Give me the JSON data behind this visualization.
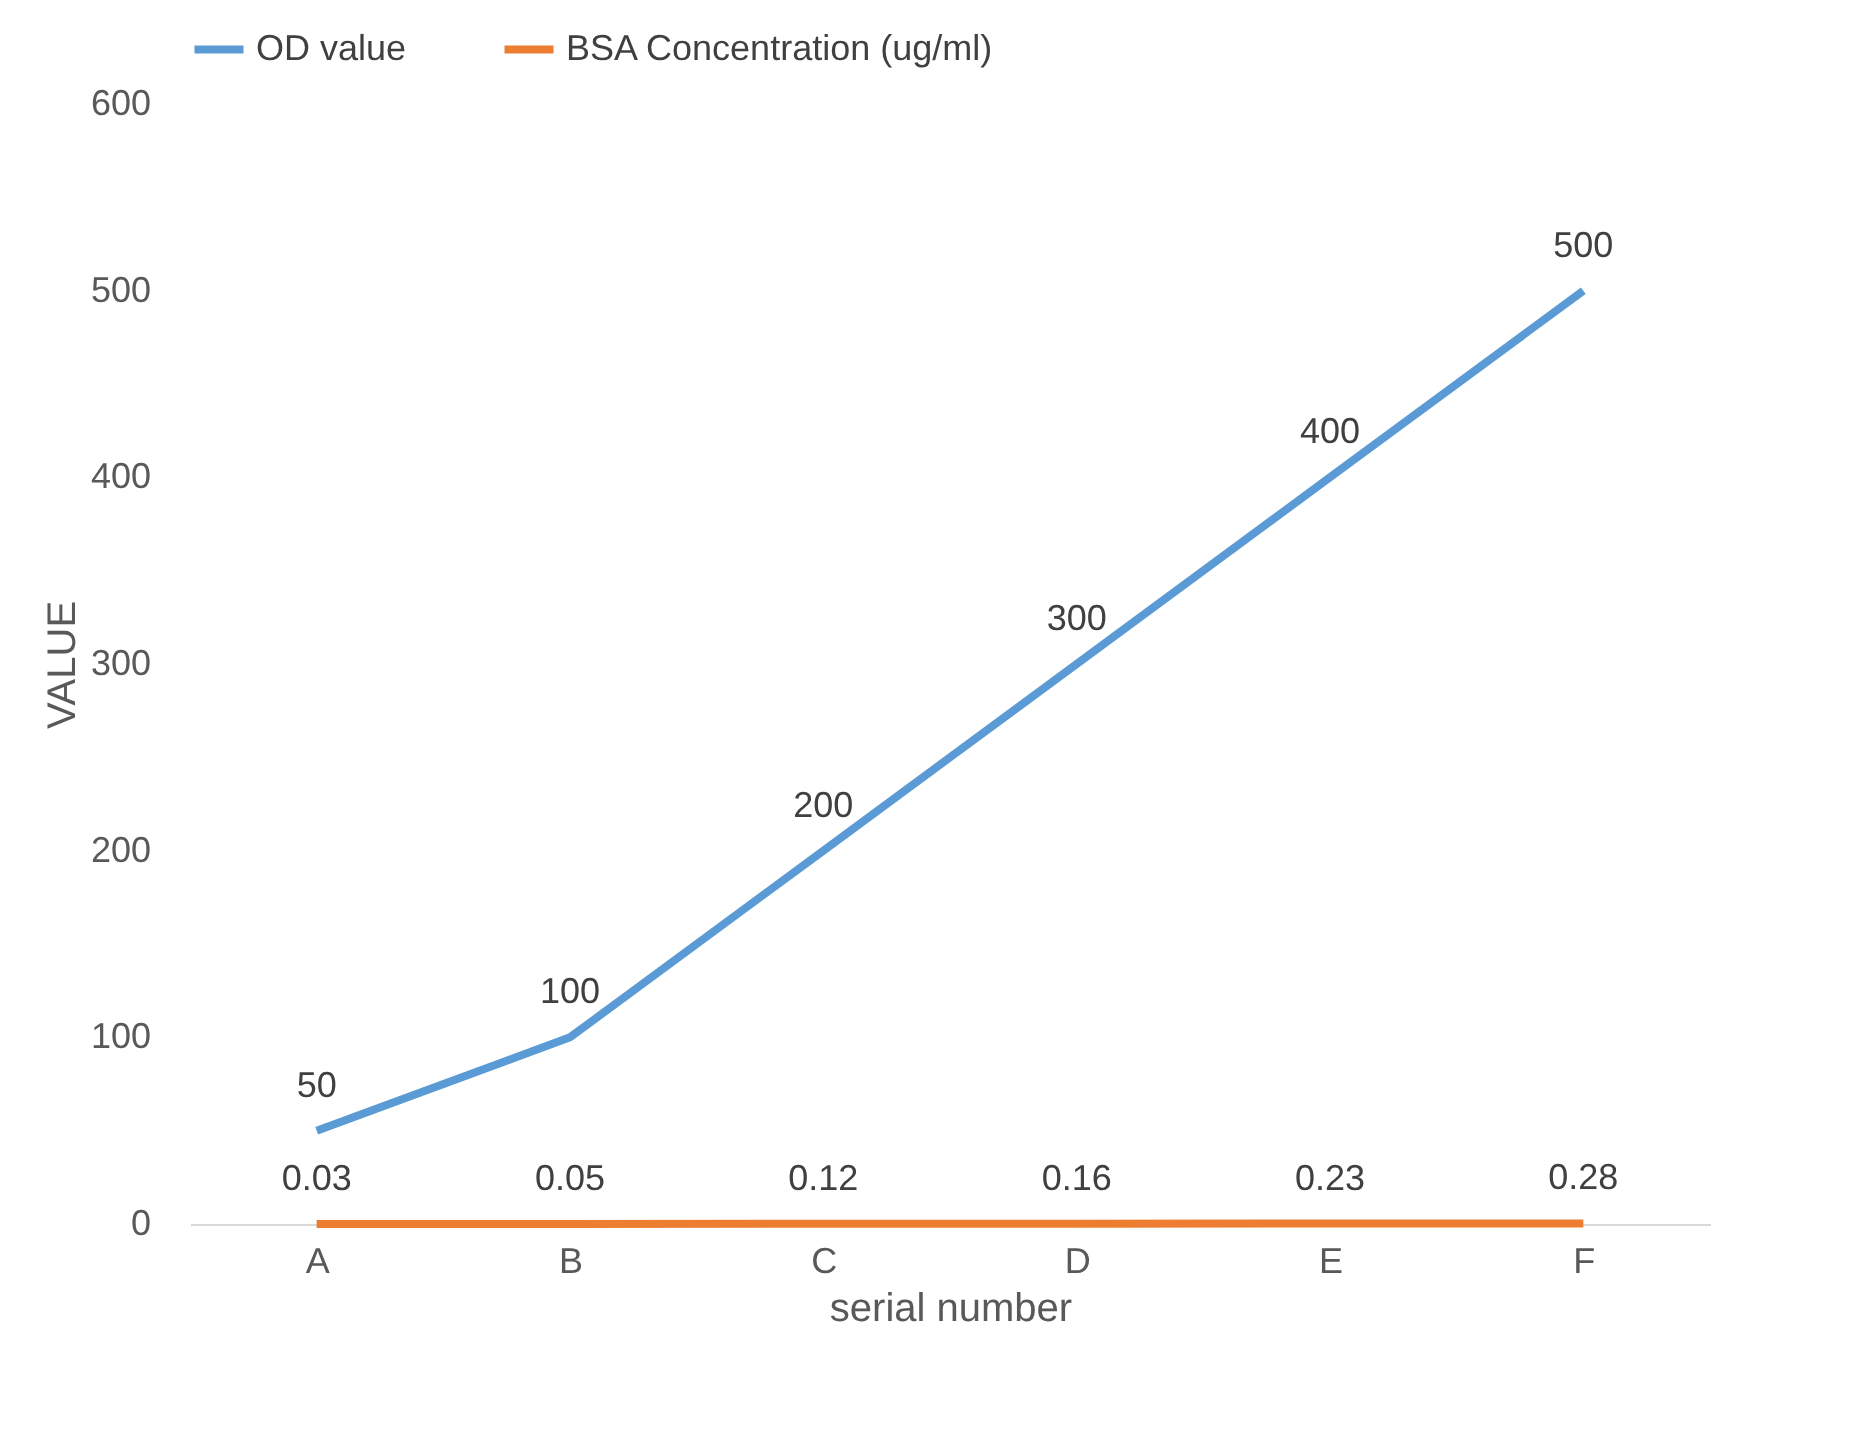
{
  "chart_data": {
    "type": "line",
    "xlabel": "serial number",
    "ylabel": "VALUE",
    "categories": [
      "A",
      "B",
      "C",
      "D",
      "E",
      "F"
    ],
    "series": [
      {
        "name": "OD value",
        "color": "#5b9bd5",
        "values": [
          50,
          100,
          200,
          300,
          400,
          500
        ]
      },
      {
        "name": "BSA Concentration (ug/ml)",
        "color": "#ed7d31",
        "values": [
          0.03,
          0.05,
          0.12,
          0.16,
          0.23,
          0.28
        ]
      }
    ],
    "ylim": [
      0,
      600
    ],
    "yticks": [
      0,
      100,
      200,
      300,
      400,
      500,
      600
    ],
    "data_labels": true,
    "legend": "top",
    "grid": false,
    "marker": "none",
    "line_style": "solid"
  }
}
